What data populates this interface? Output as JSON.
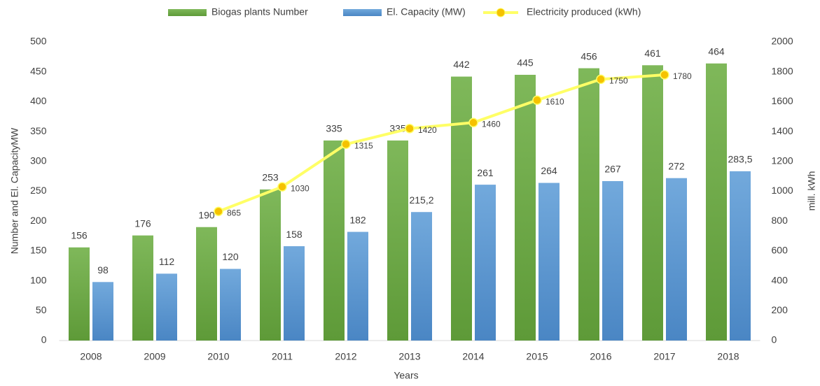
{
  "chart_data": {
    "type": "bar",
    "categories": [
      "2008",
      "2009",
      "2010",
      "2011",
      "2012",
      "2013",
      "2014",
      "2015",
      "2016",
      "2017",
      "2018"
    ],
    "series": [
      {
        "name": "Biogas plants Number",
        "color": "#70ad47",
        "values": [
          156,
          176,
          190,
          253,
          335,
          335,
          442,
          445,
          456,
          461,
          464
        ]
      },
      {
        "name": "El. Capacity (MW)",
        "color": "#5b9bd5",
        "values": [
          98,
          112,
          120,
          158,
          182,
          215.2,
          261,
          264,
          267,
          272,
          283.5
        ],
        "value_labels": [
          "98",
          "112",
          "120",
          "158",
          "182",
          "215,2",
          "261",
          "264",
          "267",
          "272",
          "283,5"
        ]
      },
      {
        "name": "Electricity produced (kWh)",
        "type": "line",
        "axis": "y2",
        "color": "#ffff66",
        "marker_color": "#f5c200",
        "values": [
          null,
          null,
          865,
          1030,
          1315,
          1420,
          1460,
          1610,
          1750,
          1780,
          null
        ]
      }
    ],
    "ylim": [
      0,
      500
    ],
    "yticks": [
      0,
      50,
      100,
      150,
      200,
      250,
      300,
      350,
      400,
      450,
      500
    ],
    "y2lim": [
      0,
      2000
    ],
    "y2ticks": [
      0,
      200,
      400,
      600,
      800,
      1000,
      1200,
      1400,
      1600,
      1800,
      2000
    ],
    "x_label": "Years",
    "y_label": "Number and El. CapacityMW",
    "y2_label": "mill. kWh",
    "legend": "top",
    "grid": false
  }
}
